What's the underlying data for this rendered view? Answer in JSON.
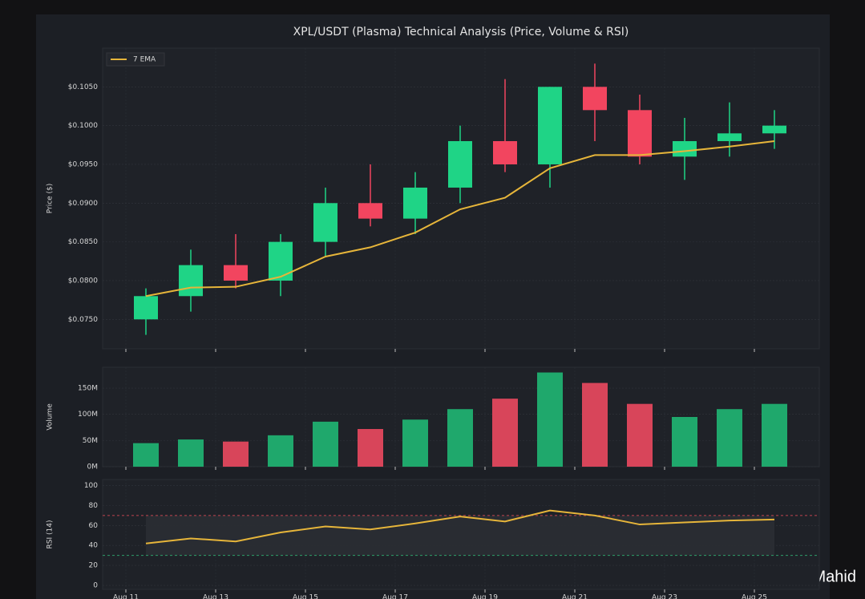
{
  "chart_data": [
    {
      "type": "candlestick",
      "title": "XPL/USDT (Plasma) Technical Analysis (Price, Volume & RSI)",
      "ylabel": "Price ($)",
      "open": [
        0.075,
        0.078,
        0.082,
        0.08,
        0.085,
        0.09,
        0.088,
        0.092,
        0.098,
        0.095,
        0.105,
        0.102,
        0.096,
        0.098,
        0.099
      ],
      "high": [
        0.079,
        0.084,
        0.086,
        0.086,
        0.092,
        0.095,
        0.094,
        0.1,
        0.106,
        0.105,
        0.108,
        0.104,
        0.101,
        0.103,
        0.102
      ],
      "low": [
        0.073,
        0.076,
        0.079,
        0.078,
        0.083,
        0.087,
        0.086,
        0.09,
        0.094,
        0.092,
        0.098,
        0.095,
        0.093,
        0.096,
        0.097
      ],
      "close": [
        0.078,
        0.082,
        0.08,
        0.085,
        0.09,
        0.088,
        0.092,
        0.098,
        0.095,
        0.105,
        0.102,
        0.096,
        0.098,
        0.099,
        0.1
      ],
      "up_color": "#1fd486",
      "down_color": "#f2455f",
      "series": [
        {
          "name": "7 EMA",
          "color": "#e6b53a",
          "values": [
            0.078,
            0.0791,
            0.0792,
            0.0805,
            0.0831,
            0.0843,
            0.0862,
            0.0892,
            0.0907,
            0.0945,
            0.0962,
            0.0962,
            0.0967,
            0.0973,
            0.098
          ]
        }
      ],
      "legend": "upper left",
      "ylim": [
        0.0712,
        0.11
      ],
      "yticks": [
        {
          "value": 0.075,
          "label": "$0.0750"
        },
        {
          "value": 0.08,
          "label": "$0.0800"
        },
        {
          "value": 0.085,
          "label": "$0.0850"
        },
        {
          "value": 0.09,
          "label": "$0.0900"
        },
        {
          "value": 0.095,
          "label": "$0.0950"
        },
        {
          "value": 0.1,
          "label": "$0.1000"
        },
        {
          "value": 0.105,
          "label": "$0.1050"
        }
      ],
      "grid": true
    },
    {
      "type": "bar",
      "ylabel": "Volume",
      "values": [
        45,
        52,
        48,
        60,
        86,
        72,
        90,
        110,
        130,
        180,
        160,
        120,
        95,
        110,
        120
      ],
      "up_color": "#1fa86c",
      "down_color": "#d8455a",
      "ylim": [
        0,
        190
      ],
      "yticks": [
        {
          "value": 0,
          "label": "0M"
        },
        {
          "value": 50,
          "label": "50M"
        },
        {
          "value": 100,
          "label": "100M"
        },
        {
          "value": 150,
          "label": "150M"
        }
      ],
      "grid": true
    },
    {
      "type": "line",
      "ylabel": "RSI (14)",
      "categories": [
        "Aug 11",
        null,
        "Aug 13",
        null,
        "Aug 15",
        null,
        "Aug 17",
        null,
        "Aug 19",
        null,
        "Aug 21",
        null,
        "Aug 23",
        null,
        "Aug 25"
      ],
      "series": [
        {
          "color": "#e6b53a",
          "values": [
            42,
            47,
            44,
            53,
            59,
            56,
            62,
            69,
            64,
            75,
            70,
            61,
            63,
            65,
            66
          ]
        }
      ],
      "hlines": [
        {
          "value": 70,
          "color": "#c0444f"
        },
        {
          "value": 30,
          "color": "#2f9e6a"
        }
      ],
      "ylim": [
        -4,
        106
      ],
      "yticks": [
        0,
        20,
        40,
        60,
        80,
        100
      ],
      "grid": true
    }
  ],
  "watermark": "@ Malik Mahid"
}
